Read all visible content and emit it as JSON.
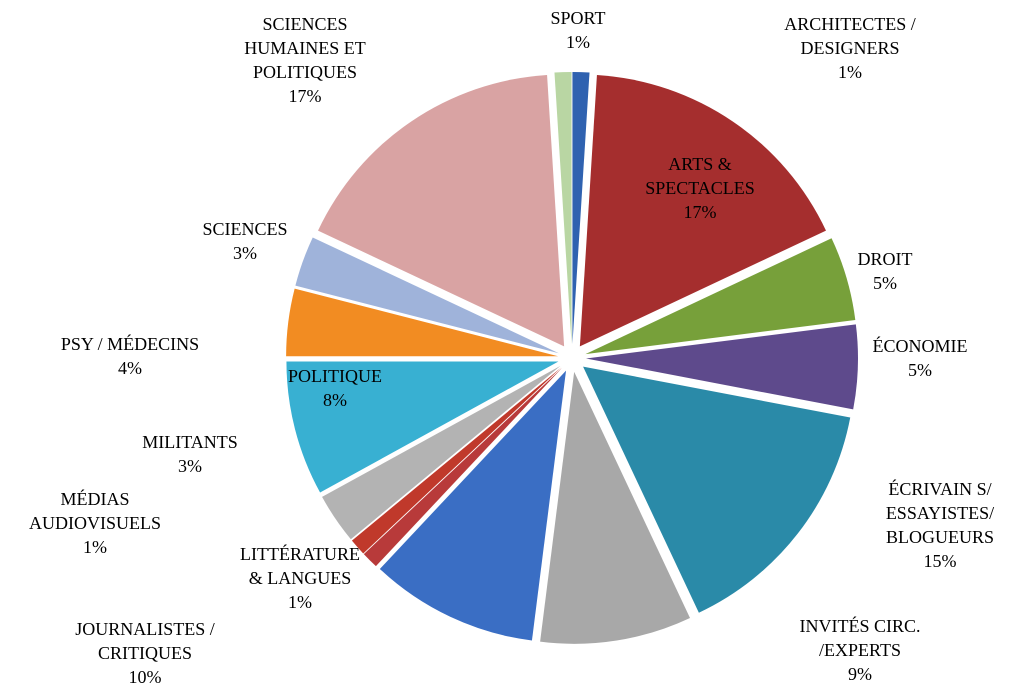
{
  "chart_data": {
    "type": "pie",
    "categories": [
      [
        "ARCHITECTES /",
        "DESIGNERS"
      ],
      [
        "ARTS &",
        "SPECTACLES"
      ],
      [
        "DROIT"
      ],
      [
        "ÉCONOMIE"
      ],
      [
        "ÉCRIVAIN S/",
        "ESSAYISTES/",
        "BLOGUEURS"
      ],
      [
        "INVITÉS CIRC.",
        "/EXPERTS"
      ],
      [
        "JOURNALISTES /",
        "CRITIQUES"
      ],
      [
        "LITTÉRATURE",
        "& LANGUES"
      ],
      [
        "MÉDIAS",
        "AUDIOVISUELS"
      ],
      [
        "MILITANTS"
      ],
      [
        "POLITIQUE"
      ],
      [
        "PSY / MÉDECINS"
      ],
      [
        "SCIENCES"
      ],
      [
        "SCIENCES",
        "HUMAINES ET",
        "POLITIQUES"
      ],
      [
        "SPORT"
      ]
    ],
    "values": [
      1,
      17,
      5,
      5,
      15,
      9,
      10,
      1,
      1,
      3,
      8,
      4,
      3,
      17,
      1
    ],
    "value_labels": [
      "1%",
      "17%",
      "5%",
      "5%",
      "15%",
      "9%",
      "10%",
      "1%",
      "1%",
      "3%",
      "8%",
      "4%",
      "3%",
      "17%",
      "1%"
    ],
    "colors": [
      "#2f62b0",
      "#a52e2e",
      "#77a03a",
      "#5e4a8c",
      "#2a8aa8",
      "#a8a8a8",
      "#3a6ec4",
      "#b83a3a",
      "#c0392b",
      "#b3b3b3",
      "#38b0d2",
      "#f28c22",
      "#9fb3da",
      "#d9a3a3",
      "#b9d6a3"
    ]
  }
}
